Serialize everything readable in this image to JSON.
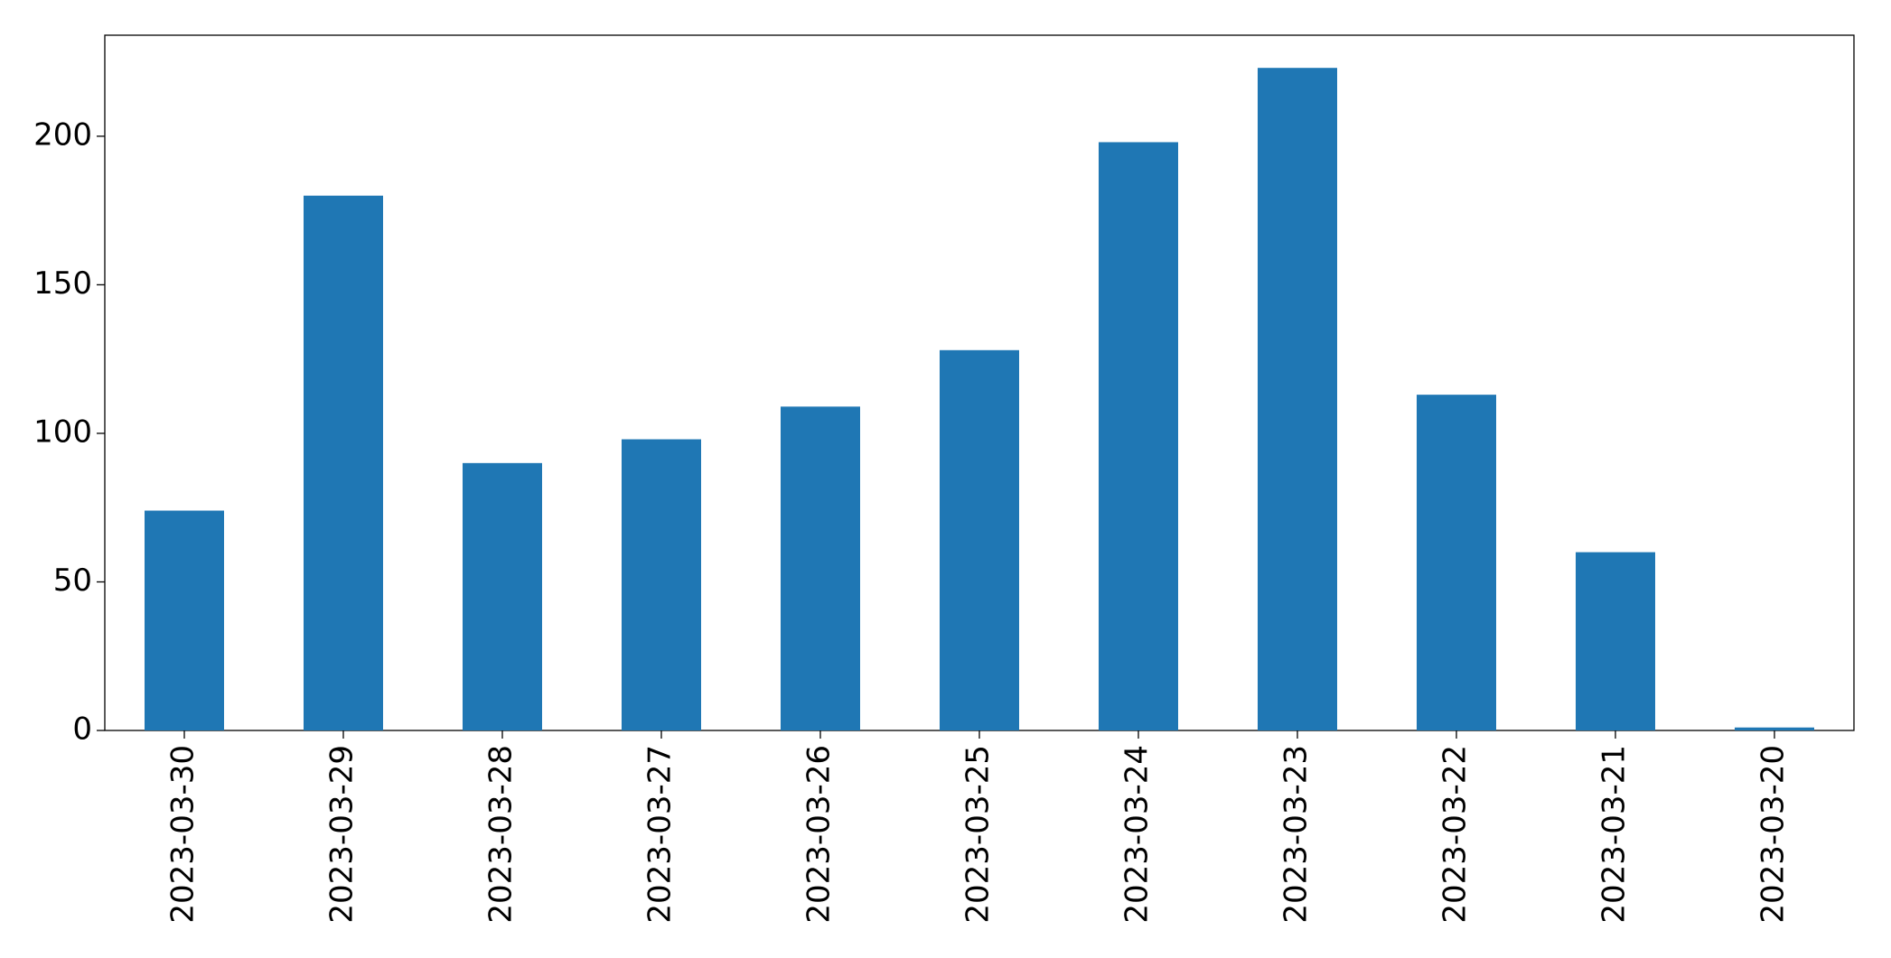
{
  "chart_data": {
    "type": "bar",
    "categories": [
      "2023-03-30",
      "2023-03-29",
      "2023-03-28",
      "2023-03-27",
      "2023-03-26",
      "2023-03-25",
      "2023-03-24",
      "2023-03-23",
      "2023-03-22",
      "2023-03-21",
      "2023-03-20"
    ],
    "values": [
      74,
      180,
      90,
      98,
      109,
      128,
      198,
      223,
      113,
      60,
      1
    ],
    "color": "#1f77b4",
    "ylim": [
      0,
      234
    ],
    "yticks": [
      0,
      50,
      100,
      150,
      200
    ],
    "grid": false
  }
}
